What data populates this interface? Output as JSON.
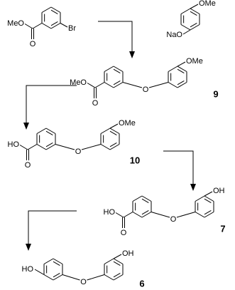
{
  "compounds": [
    {
      "labels": [
        "MeO",
        "O",
        "Br"
      ]
    },
    {
      "labels": [
        "NaO",
        "OMe"
      ]
    },
    {
      "number": "9",
      "labels": [
        "MeO",
        "O",
        "O",
        "OMe"
      ]
    },
    {
      "number": "10",
      "labels": [
        "HO",
        "O",
        "O",
        "OMe"
      ]
    },
    {
      "number": "7",
      "labels": [
        "HO",
        "O",
        "O",
        "OH"
      ]
    },
    {
      "number": "6",
      "labels": [
        "HO",
        "O",
        "OH"
      ]
    }
  ]
}
